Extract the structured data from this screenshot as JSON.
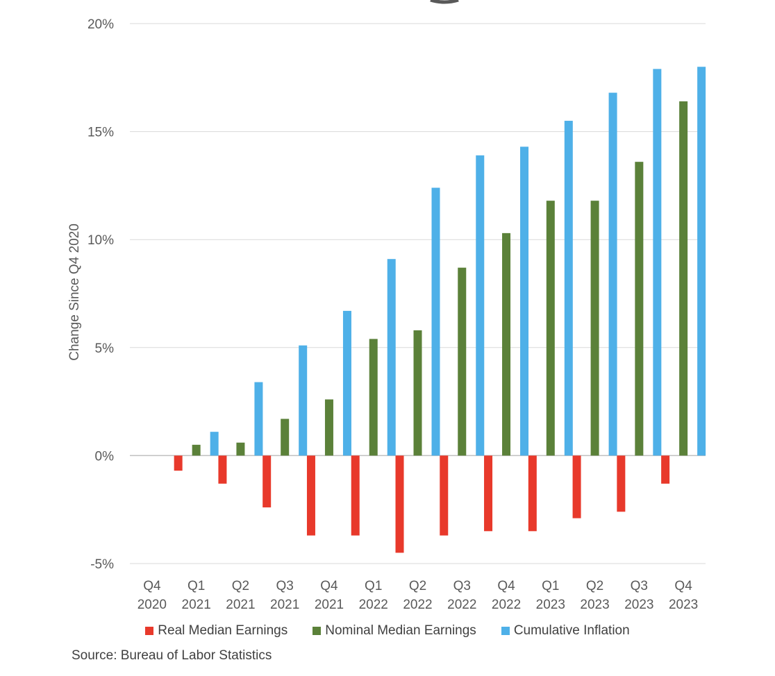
{
  "chart_data": {
    "type": "bar",
    "ylabel": "Change Since Q4 2020",
    "ylim": [
      -5,
      20
    ],
    "yticks": [
      {
        "value": 20,
        "label": "20%"
      },
      {
        "value": 15,
        "label": "15%"
      },
      {
        "value": 10,
        "label": "10%"
      },
      {
        "value": 5,
        "label": "5%"
      },
      {
        "value": 0,
        "label": "0%"
      },
      {
        "value": -5,
        "label": "-5%"
      }
    ],
    "categories": [
      {
        "line1": "Q4",
        "line2": "2020"
      },
      {
        "line1": "Q1",
        "line2": "2021"
      },
      {
        "line1": "Q2",
        "line2": "2021"
      },
      {
        "line1": "Q3",
        "line2": "2021"
      },
      {
        "line1": "Q4",
        "line2": "2021"
      },
      {
        "line1": "Q1",
        "line2": "2022"
      },
      {
        "line1": "Q2",
        "line2": "2022"
      },
      {
        "line1": "Q3",
        "line2": "2022"
      },
      {
        "line1": "Q4",
        "line2": "2022"
      },
      {
        "line1": "Q1",
        "line2": "2023"
      },
      {
        "line1": "Q2",
        "line2": "2023"
      },
      {
        "line1": "Q3",
        "line2": "2023"
      },
      {
        "line1": "Q4",
        "line2": "2023"
      }
    ],
    "series": [
      {
        "name": "Real Median Earnings",
        "color": "#e8392b",
        "values": [
          0,
          -0.7,
          -1.3,
          -2.4,
          -3.7,
          -3.7,
          -4.5,
          -3.7,
          -3.5,
          -3.5,
          -2.9,
          -2.6,
          -1.3
        ]
      },
      {
        "name": "Nominal Median Earnings",
        "color": "#5b8139",
        "values": [
          0,
          0.5,
          0.6,
          1.7,
          2.6,
          5.4,
          5.8,
          8.7,
          10.3,
          11.8,
          11.8,
          13.6,
          16.4
        ]
      },
      {
        "name": "Cumulative Inflation",
        "color": "#4eb0e8",
        "values": [
          0,
          1.1,
          3.4,
          5.1,
          6.7,
          9.1,
          12.4,
          13.9,
          14.3,
          15.5,
          16.8,
          17.9,
          18.0
        ]
      }
    ],
    "grid": true,
    "legend_position": "bottom"
  },
  "source": "Source: Bureau of Labor Statistics"
}
